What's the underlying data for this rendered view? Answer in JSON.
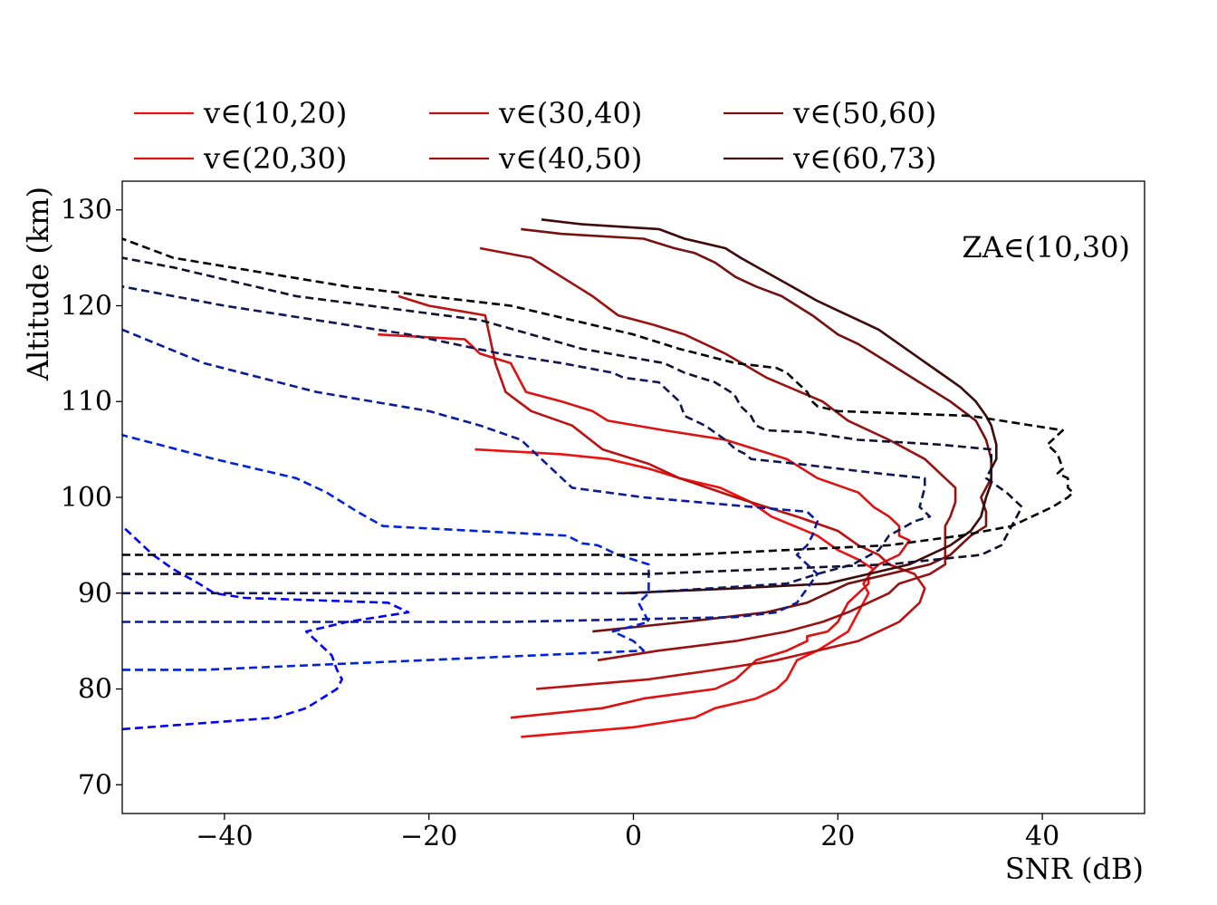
{
  "chart_data": {
    "type": "line",
    "xlabel": "SNR (dB)",
    "ylabel": "Altitude (km)",
    "annotation": "ZA∈(10,30)",
    "xlim": [
      -50,
      50
    ],
    "ylim": [
      67,
      133
    ],
    "xticks": [
      -40,
      -20,
      0,
      20,
      40
    ],
    "xtick_labels": [
      "−40",
      "−20",
      "0",
      "20",
      "40"
    ],
    "yticks": [
      70,
      80,
      90,
      100,
      110,
      120,
      130
    ],
    "ytick_labels": [
      "70",
      "80",
      "90",
      "100",
      "110",
      "120",
      "130"
    ],
    "grid": false,
    "legend_position": "top, above plot, 3 columns",
    "series": [
      {
        "name": "v∈(10,20)",
        "color": "#ee1111",
        "style": "solid",
        "x": [
          -11,
          0,
          6,
          8,
          12,
          14,
          15,
          15.5,
          16,
          18,
          19.5,
          21,
          21.5,
          22,
          22.5,
          23,
          22.5,
          23.5,
          22,
          20,
          18,
          13.5,
          11.5,
          8.5,
          4.5,
          1.5,
          -2.5,
          -7,
          -15.5
        ],
        "y": [
          75,
          76,
          77,
          78,
          79,
          80,
          81,
          82,
          83,
          84,
          85,
          86,
          87,
          88,
          89,
          90,
          91,
          92.5,
          93.5,
          94.5,
          96,
          98,
          99.5,
          101,
          102,
          103,
          104,
          104.5,
          105
        ]
      },
      {
        "name": "v∈(20,30)",
        "color": "#dd1111",
        "style": "solid",
        "x": [
          -12,
          -3,
          1,
          8,
          10,
          11,
          12,
          15,
          17,
          17,
          19,
          20,
          20.5,
          21,
          22,
          23,
          23,
          24,
          26,
          27,
          26,
          26,
          25,
          23.5,
          22,
          18,
          15,
          12,
          9,
          3,
          -2.5,
          -4,
          -7,
          -10.5,
          -11,
          -11.5,
          -12,
          -15,
          -16,
          -16.5,
          -25
        ],
        "y": [
          77,
          78,
          79,
          80,
          81,
          82,
          83,
          84,
          85,
          85.5,
          86,
          87,
          88,
          89,
          90,
          91,
          92,
          93,
          94,
          95.5,
          96,
          97,
          98,
          99,
          100.5,
          102,
          104,
          105,
          106,
          107,
          108,
          109,
          110,
          111,
          112,
          113,
          114,
          115,
          116,
          116.5,
          117
        ]
      },
      {
        "name": "v∈(30,40)",
        "color": "#bb1111",
        "style": "solid",
        "x": [
          -9.5,
          1.5,
          8,
          14,
          18,
          22,
          24,
          26,
          27,
          28,
          28.5,
          27.5,
          25,
          24,
          22,
          20,
          16,
          10,
          4.5,
          1.5,
          -3,
          -6,
          -10,
          -12.5,
          -13.5,
          -14.5,
          -20,
          -23
        ],
        "y": [
          80,
          81,
          82,
          83,
          84,
          85,
          86,
          87,
          88,
          89,
          90.5,
          92,
          93,
          94,
          95,
          96.5,
          98,
          100,
          102,
          103.5,
          105,
          107.5,
          109,
          111,
          114,
          119,
          120,
          121
        ]
      },
      {
        "name": "v∈(40,50)",
        "color": "#991111",
        "style": "solid",
        "x": [
          -3.5,
          2.5,
          10,
          15,
          18.5,
          21,
          23,
          25,
          26,
          29,
          30.5,
          30.5,
          30.5,
          31,
          31.5,
          31.5,
          28.5,
          25,
          21,
          18.5,
          13,
          9,
          5,
          2,
          -1.5,
          -4,
          -7,
          -10,
          -15
        ],
        "y": [
          83,
          84,
          85,
          86,
          87,
          88,
          89,
          90,
          91,
          92,
          93,
          95,
          97,
          98,
          99.5,
          101,
          104,
          106,
          108,
          110,
          112.5,
          115,
          117,
          118,
          119,
          121,
          123,
          125,
          126
        ]
      },
      {
        "name": "v∈(50,60)",
        "color": "#771111",
        "style": "solid",
        "x": [
          -4,
          5,
          13,
          17,
          19,
          21,
          23,
          25,
          27,
          29,
          31,
          33,
          34.5,
          34.5,
          34,
          35,
          35,
          34.5,
          33.5,
          31,
          28,
          25,
          22,
          20,
          17.5,
          14.5,
          12,
          10,
          8,
          6,
          4,
          2.5,
          1,
          -7,
          -11
        ],
        "y": [
          86,
          87,
          88,
          89,
          90,
          91,
          91.5,
          92,
          92.5,
          93,
          94,
          96,
          97,
          98.5,
          100,
          102,
          104,
          106,
          108,
          110,
          112,
          114,
          116,
          117,
          119,
          121,
          122,
          123,
          124.5,
          125.5,
          126,
          126.5,
          127,
          127.5,
          128
        ]
      },
      {
        "name": "v∈(60,73)",
        "color": "#3d0a0a",
        "style": "solid",
        "x": [
          -1,
          10,
          19,
          23,
          27,
          31,
          33,
          34,
          34.5,
          35,
          35,
          35.5,
          35.5,
          35,
          34.5,
          33.5,
          32,
          30,
          28,
          26,
          24,
          22,
          20,
          18,
          15.5,
          13,
          10.5,
          9,
          5,
          2.5,
          -5,
          -9
        ],
        "y": [
          90,
          90.5,
          91,
          92,
          93,
          95,
          96.5,
          98,
          100,
          101.5,
          103,
          104,
          105.5,
          107.5,
          108.5,
          110,
          111.5,
          113,
          114.5,
          116,
          117.5,
          118.5,
          119.5,
          120.5,
          122,
          123.5,
          125,
          126,
          127,
          128,
          128.5,
          129
        ]
      },
      {
        "name": "",
        "color": "#0000ff",
        "style": "dashed",
        "x": [
          -50,
          -35,
          -32,
          -30.5,
          -29,
          -28.5,
          -29,
          -29.5,
          -31,
          -32,
          -28,
          -22,
          -24,
          -38,
          -41,
          -42.5,
          -45,
          -47,
          -50
        ],
        "y": [
          75.8,
          77,
          78,
          79,
          80,
          81,
          82,
          83.5,
          85,
          86,
          87,
          88,
          89,
          89.5,
          90,
          91,
          92.5,
          94,
          97
        ]
      },
      {
        "name": "",
        "color": "#0022dd",
        "style": "dashed",
        "x": [
          -50,
          -42,
          1,
          0,
          -2,
          1.5,
          1,
          0.5,
          1.5,
          1.5,
          1.5,
          -1.5,
          -2.5,
          -3.5,
          -5,
          -6.5,
          -24.5,
          -27,
          -30,
          -33,
          -41,
          -50
        ],
        "y": [
          82,
          82,
          84,
          85,
          86,
          87,
          88,
          89,
          90,
          91,
          93,
          94,
          94.5,
          95,
          95.2,
          96,
          97,
          98.5,
          100.5,
          102,
          104,
          106.5
        ]
      },
      {
        "name": "",
        "color": "#0a1c99",
        "style": "dashed",
        "x": [
          -50,
          -12,
          10,
          14,
          16,
          17,
          18,
          16,
          17,
          17.5,
          18,
          17,
          1,
          -6,
          -8,
          -9,
          -11,
          -15,
          -20,
          -31,
          -42,
          -50
        ],
        "y": [
          87,
          87,
          87.5,
          88,
          89,
          90.5,
          92,
          94,
          95,
          96,
          97.5,
          98.5,
          100,
          101,
          103,
          104,
          106,
          107.5,
          109,
          111,
          114,
          117.5
        ]
      },
      {
        "name": "",
        "color": "#0f1855",
        "style": "dashed",
        "x": [
          -50,
          0,
          15,
          18,
          21.5,
          24,
          25,
          27.5,
          29,
          28,
          28.5,
          28.5,
          24,
          16,
          11.5,
          11,
          10,
          9,
          7,
          5,
          4.5,
          3.5,
          2.5,
          -1,
          -2,
          -7,
          -13,
          -22,
          -40,
          -50
        ],
        "y": [
          90,
          90,
          91,
          92,
          93,
          94.5,
          96,
          97.5,
          98,
          99,
          101,
          102,
          102.5,
          103.5,
          104,
          104.5,
          105,
          106,
          107.5,
          108.5,
          110,
          111,
          112,
          112.5,
          113,
          114,
          115,
          117,
          120,
          122
        ]
      },
      {
        "name": "",
        "color": "#101030",
        "style": "dashed",
        "x": [
          -50,
          1.5,
          25,
          34,
          36,
          36.5,
          37,
          37.5,
          38,
          36.5,
          34.5,
          35,
          35,
          30,
          22,
          17,
          13,
          12,
          11.5,
          10.5,
          10,
          9.5,
          8,
          5,
          3,
          -5,
          -10,
          -15,
          -33,
          -45,
          -50
        ],
        "y": [
          92,
          92,
          93,
          94,
          95,
          96,
          97,
          98,
          99,
          100.5,
          102,
          103,
          105,
          105.5,
          106,
          106.8,
          107,
          107.5,
          108.5,
          109.5,
          110.5,
          111,
          112,
          113,
          114,
          115.5,
          117,
          118.5,
          121,
          124,
          125
        ]
      },
      {
        "name": "",
        "color": "#000000",
        "style": "dashed",
        "x": [
          -50,
          5,
          25,
          32,
          37,
          39,
          41,
          42.5,
          43,
          42.5,
          42.5,
          41.5,
          42,
          41.5,
          41,
          40.5,
          42,
          36,
          33,
          20,
          18,
          17.5,
          17,
          16,
          15,
          14,
          10,
          4.5,
          0,
          -12,
          -28,
          -45,
          -50
        ],
        "y": [
          94,
          94,
          95,
          96,
          97,
          98,
          99,
          100,
          100.5,
          101,
          102,
          102.5,
          103,
          104.5,
          105,
          105.5,
          107,
          108,
          108.5,
          109,
          109.5,
          110,
          111,
          112,
          113,
          113.5,
          114,
          115.5,
          117,
          120,
          122,
          125,
          127
        ]
      }
    ]
  }
}
